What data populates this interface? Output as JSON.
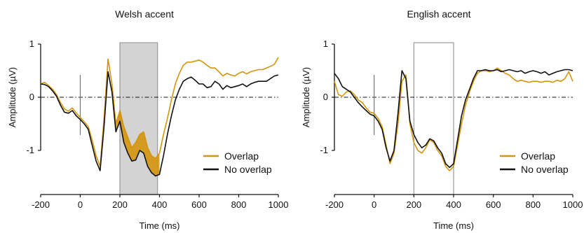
{
  "colors": {
    "overlap": "#d4950c",
    "no_overlap": "#111111",
    "window_fill": "#d3d3d3",
    "window_edge": "#999999",
    "tmarker": "#777777"
  },
  "chart_data": [
    {
      "type": "line",
      "title": "Welsh accent",
      "xlabel": "Time (ms)",
      "ylabel": "Amplitude (µV)",
      "xlim": [
        -200,
        1000
      ],
      "ylim": [
        -1.6,
        1.0
      ],
      "xticks": [
        "-200",
        "0",
        "200",
        "400",
        "600",
        "800",
        "1000"
      ],
      "yticks": [
        "1",
        "0",
        "-1"
      ],
      "grid": false,
      "legend": "bottom-right",
      "highlight": {
        "from": 200,
        "to": 390,
        "filled": true
      },
      "difference_shading": true,
      "series": [
        {
          "name": "Overlap",
          "x": [
            -200,
            -180,
            -160,
            -140,
            -120,
            -100,
            -80,
            -60,
            -40,
            -20,
            0,
            20,
            40,
            60,
            80,
            100,
            120,
            140,
            160,
            180,
            200,
            220,
            240,
            260,
            280,
            300,
            320,
            340,
            360,
            380,
            400,
            420,
            440,
            460,
            480,
            500,
            520,
            540,
            560,
            580,
            600,
            620,
            640,
            660,
            680,
            700,
            720,
            740,
            760,
            780,
            800,
            820,
            840,
            860,
            880,
            900,
            920,
            940,
            960,
            980,
            1000
          ],
          "y": [
            0.25,
            0.28,
            0.22,
            0.15,
            0.05,
            -0.1,
            -0.22,
            -0.26,
            -0.2,
            -0.3,
            -0.38,
            -0.46,
            -0.55,
            -0.8,
            -1.1,
            -1.3,
            -0.4,
            0.72,
            0.25,
            -0.5,
            -0.25,
            -0.55,
            -0.75,
            -0.95,
            -0.85,
            -0.7,
            -0.65,
            -0.95,
            -1.1,
            -1.15,
            -1.05,
            -0.7,
            -0.4,
            -0.05,
            0.25,
            0.45,
            0.6,
            0.66,
            0.66,
            0.68,
            0.7,
            0.66,
            0.6,
            0.55,
            0.55,
            0.48,
            0.4,
            0.45,
            0.42,
            0.4,
            0.45,
            0.48,
            0.44,
            0.48,
            0.5,
            0.52,
            0.52,
            0.55,
            0.58,
            0.62,
            0.75
          ]
        },
        {
          "name": "No overlap",
          "x": [
            -200,
            -180,
            -160,
            -140,
            -120,
            -100,
            -80,
            -60,
            -40,
            -20,
            0,
            20,
            40,
            60,
            80,
            100,
            120,
            140,
            160,
            180,
            200,
            220,
            240,
            260,
            280,
            300,
            320,
            340,
            360,
            380,
            400,
            420,
            440,
            460,
            480,
            500,
            520,
            540,
            560,
            580,
            600,
            620,
            640,
            660,
            680,
            700,
            720,
            740,
            760,
            780,
            800,
            820,
            840,
            860,
            880,
            900,
            920,
            940,
            960,
            980,
            1000
          ],
          "y": [
            0.25,
            0.24,
            0.2,
            0.12,
            0.02,
            -0.15,
            -0.28,
            -0.3,
            -0.25,
            -0.35,
            -0.42,
            -0.5,
            -0.6,
            -0.9,
            -1.2,
            -1.38,
            -0.55,
            0.48,
            0.1,
            -0.65,
            -0.45,
            -0.85,
            -1.05,
            -1.2,
            -1.18,
            -1.0,
            -1.05,
            -1.3,
            -1.42,
            -1.48,
            -1.45,
            -1.1,
            -0.7,
            -0.35,
            -0.05,
            0.15,
            0.3,
            0.35,
            0.38,
            0.32,
            0.25,
            0.25,
            0.18,
            0.2,
            0.3,
            0.25,
            0.15,
            0.22,
            0.18,
            0.2,
            0.22,
            0.25,
            0.2,
            0.25,
            0.28,
            0.3,
            0.3,
            0.3,
            0.35,
            0.4,
            0.42
          ]
        }
      ]
    },
    {
      "type": "line",
      "title": "English accent",
      "xlabel": "Time (ms)",
      "ylabel": "Amplitude (µV)",
      "xlim": [
        -200,
        1000
      ],
      "ylim": [
        -1.6,
        1.0
      ],
      "xticks": [
        "-200",
        "0",
        "200",
        "400",
        "600",
        "800",
        "1000"
      ],
      "yticks": [
        "1",
        "0",
        "-1"
      ],
      "grid": false,
      "legend": "bottom-right",
      "highlight": {
        "from": 200,
        "to": 400,
        "filled": false
      },
      "difference_shading": false,
      "series": [
        {
          "name": "Overlap",
          "x": [
            -200,
            -180,
            -160,
            -140,
            -120,
            -100,
            -80,
            -60,
            -40,
            -20,
            0,
            20,
            40,
            60,
            80,
            100,
            120,
            140,
            160,
            180,
            200,
            220,
            240,
            260,
            280,
            300,
            320,
            340,
            360,
            380,
            400,
            420,
            440,
            460,
            480,
            500,
            520,
            540,
            560,
            580,
            600,
            620,
            640,
            660,
            680,
            700,
            720,
            740,
            760,
            780,
            800,
            820,
            840,
            860,
            880,
            900,
            920,
            940,
            960,
            980,
            1000
          ],
          "y": [
            0.3,
            0.05,
            0.02,
            0.1,
            0.12,
            0.05,
            -0.05,
            -0.1,
            -0.2,
            -0.28,
            -0.3,
            -0.4,
            -0.55,
            -0.9,
            -1.25,
            -1.05,
            -0.5,
            0.3,
            0.42,
            -0.5,
            -0.85,
            -1.0,
            -1.05,
            -0.95,
            -0.8,
            -0.85,
            -1.0,
            -1.1,
            -1.3,
            -1.38,
            -1.3,
            -0.9,
            -0.5,
            -0.15,
            0.1,
            0.3,
            0.45,
            0.5,
            0.5,
            0.48,
            0.5,
            0.55,
            0.5,
            0.45,
            0.42,
            0.35,
            0.3,
            0.32,
            0.3,
            0.28,
            0.3,
            0.3,
            0.28,
            0.3,
            0.3,
            0.28,
            0.32,
            0.3,
            0.35,
            0.48,
            0.3
          ]
        },
        {
          "name": "No overlap",
          "x": [
            -200,
            -180,
            -160,
            -140,
            -120,
            -100,
            -80,
            -60,
            -40,
            -20,
            0,
            20,
            40,
            60,
            80,
            100,
            120,
            140,
            160,
            180,
            200,
            220,
            240,
            260,
            280,
            300,
            320,
            340,
            360,
            380,
            400,
            420,
            440,
            460,
            480,
            500,
            520,
            540,
            560,
            580,
            600,
            620,
            640,
            660,
            680,
            700,
            720,
            740,
            760,
            780,
            800,
            820,
            840,
            860,
            880,
            900,
            920,
            940,
            960,
            980,
            1000
          ],
          "y": [
            0.45,
            0.35,
            0.2,
            0.15,
            0.1,
            0.0,
            -0.1,
            -0.18,
            -0.25,
            -0.32,
            -0.35,
            -0.45,
            -0.6,
            -0.95,
            -1.2,
            -1.0,
            -0.3,
            0.5,
            0.35,
            -0.45,
            -0.7,
            -0.85,
            -0.95,
            -0.9,
            -0.78,
            -0.82,
            -0.95,
            -1.05,
            -1.25,
            -1.32,
            -1.25,
            -0.8,
            -0.35,
            -0.05,
            0.15,
            0.35,
            0.5,
            0.5,
            0.52,
            0.5,
            0.5,
            0.52,
            0.48,
            0.5,
            0.52,
            0.5,
            0.48,
            0.5,
            0.45,
            0.48,
            0.5,
            0.48,
            0.45,
            0.48,
            0.42,
            0.45,
            0.48,
            0.5,
            0.52,
            0.52,
            0.5
          ]
        }
      ]
    }
  ]
}
